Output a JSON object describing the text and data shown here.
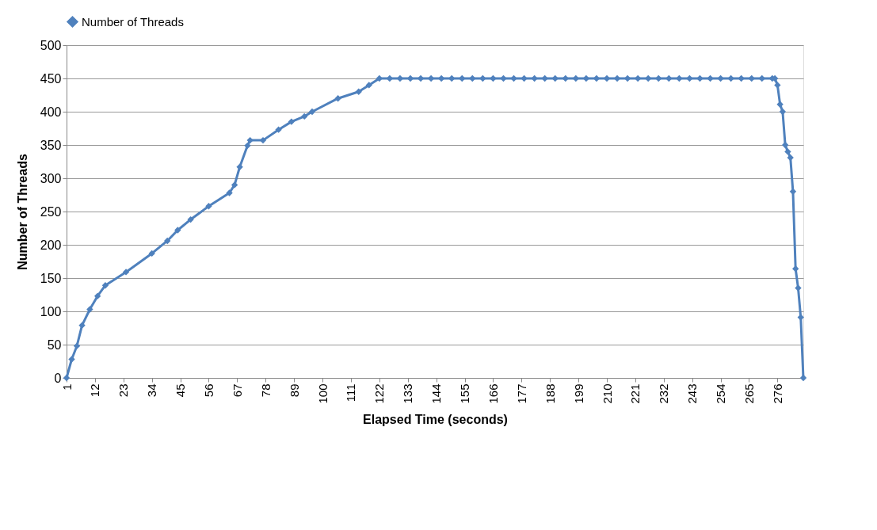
{
  "chart_data": {
    "type": "line",
    "xlabel": "Elapsed Time (seconds)",
    "ylabel": "Number of Threads",
    "x": [
      1,
      3,
      5,
      7,
      10,
      13,
      16,
      24,
      34,
      40,
      44,
      49,
      56,
      64,
      66,
      68,
      71,
      72,
      77,
      83,
      88,
      93,
      96,
      106,
      114,
      118,
      122,
      126,
      130,
      134,
      138,
      142,
      146,
      150,
      154,
      158,
      162,
      166,
      170,
      174,
      178,
      182,
      186,
      190,
      194,
      198,
      202,
      206,
      210,
      214,
      218,
      222,
      226,
      230,
      234,
      238,
      242,
      246,
      250,
      254,
      258,
      262,
      266,
      270,
      274,
      275,
      276,
      277,
      278,
      279,
      280,
      281,
      282,
      283,
      284,
      285,
      286
    ],
    "series": [
      {
        "name": "Number of Threads",
        "color": "#4f81bd",
        "values": [
          0,
          28,
          48,
          79,
          103,
          123,
          139,
          159,
          187,
          206,
          222,
          238,
          258,
          278,
          290,
          317,
          349,
          357,
          357,
          373,
          385,
          393,
          400,
          420,
          430,
          440,
          450,
          450,
          450,
          450,
          450,
          450,
          450,
          450,
          450,
          450,
          450,
          450,
          450,
          450,
          450,
          450,
          450,
          450,
          450,
          450,
          450,
          450,
          450,
          450,
          450,
          450,
          450,
          450,
          450,
          450,
          450,
          450,
          450,
          450,
          450,
          450,
          450,
          450,
          450,
          450,
          440,
          411,
          400,
          350,
          340,
          331,
          280,
          164,
          135,
          91,
          0
        ]
      }
    ],
    "xlim": [
      1,
      286
    ],
    "xticks": [
      1,
      12,
      23,
      34,
      45,
      56,
      67,
      78,
      89,
      100,
      111,
      122,
      133,
      144,
      155,
      166,
      177,
      188,
      199,
      210,
      221,
      232,
      243,
      254,
      265,
      276
    ],
    "ylim": [
      0,
      500
    ],
    "yticks": [
      0,
      50,
      100,
      150,
      200,
      250,
      300,
      350,
      400,
      450,
      500
    ],
    "grid": "y",
    "legend": "top",
    "marker": "diamond",
    "line_style": "solid"
  }
}
